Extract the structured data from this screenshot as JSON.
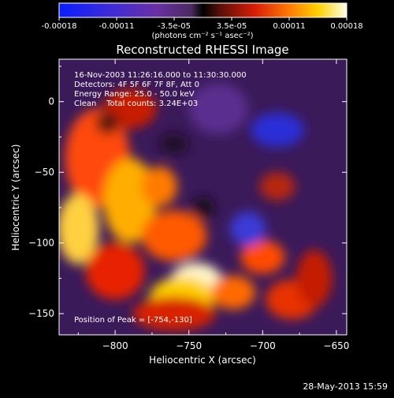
{
  "colorbar": {
    "ticks": [
      "-0.00018",
      "-0.00011",
      "-3.5e-05",
      "3.5e-05",
      "0.00011",
      "0.00018"
    ],
    "unit_line": "(photons cm⁻² s⁻¹ asec⁻²)"
  },
  "chart_data": {
    "type": "heatmap",
    "title": "Reconstructed RHESSI Image",
    "xlabel": "Heliocentric X (arcsec)",
    "ylabel": "Heliocentric Y (arcsec)",
    "xlim": [
      -838,
      -643
    ],
    "ylim": [
      -165,
      30
    ],
    "xticks": [
      -800,
      -750,
      -700,
      -650
    ],
    "yticks": [
      0,
      -50,
      -100,
      -150
    ],
    "colormap": "blue-purple-red-yellow-white",
    "vmin": -0.00018,
    "vmax": 0.00018,
    "peak": [
      -754,
      -130
    ],
    "annotations": [
      "16-Nov-2003 11:26:16.000 to 11:30:30.000",
      "Detectors: 4F 5F 6F 7F 8F, Att 0",
      "Energy Range: 25.0 - 50.0 keV",
      "Clean    Total counts: 3.24E+03",
      "Position of Peak = [-754,-130]"
    ]
  },
  "timestamp": "28-May-2013 15:59"
}
